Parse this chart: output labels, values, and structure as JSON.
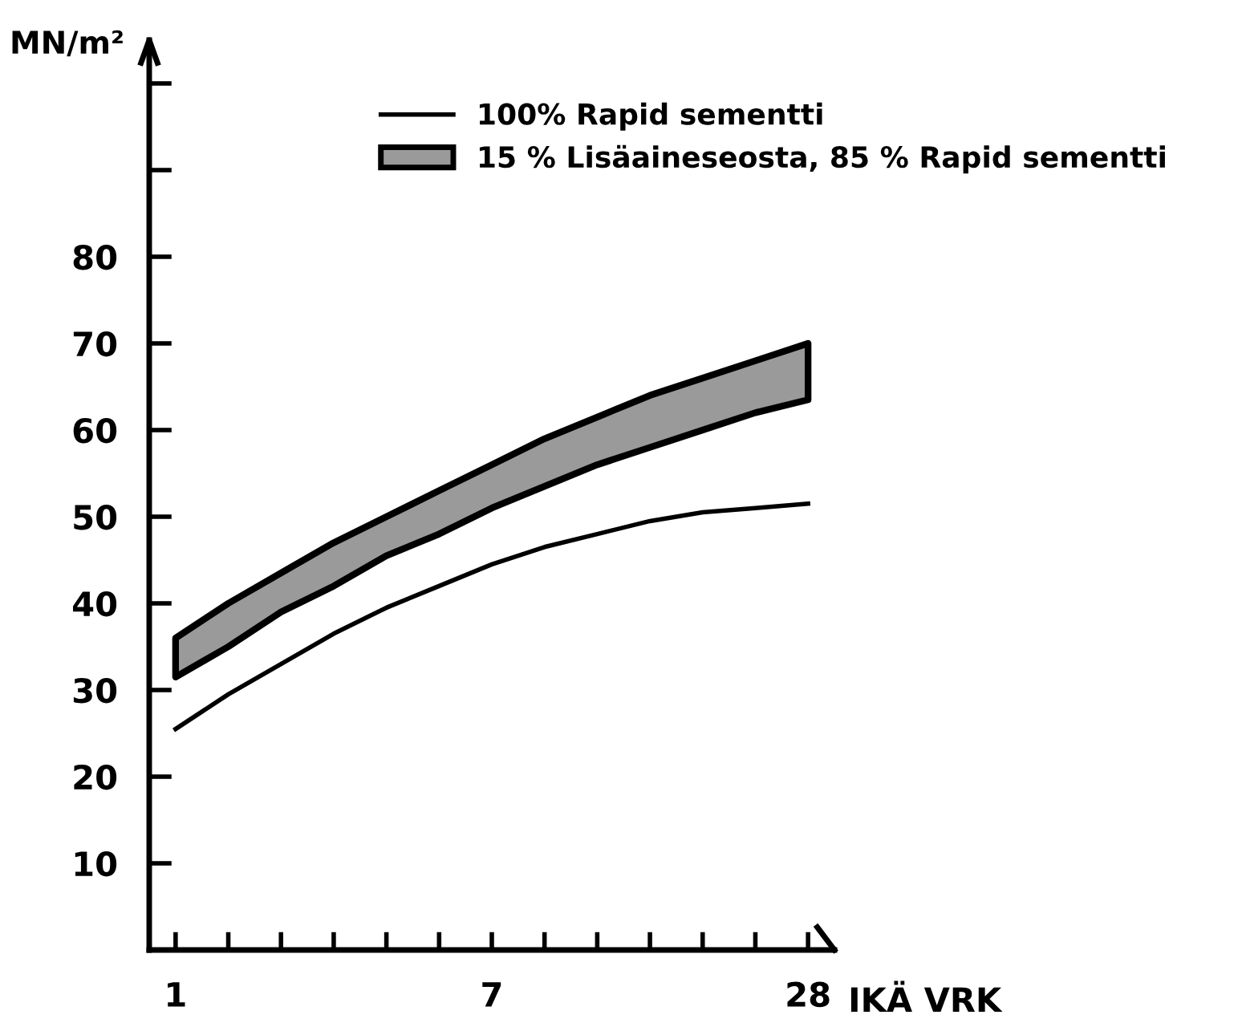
{
  "chart_data": {
    "type": "line",
    "ylabel": "MN/m²",
    "xlabel": "IKÄ VRK",
    "categories": [
      "1",
      null,
      null,
      null,
      null,
      null,
      "7",
      null,
      null,
      null,
      null,
      null,
      "28"
    ],
    "series": [
      {
        "name": "100% Rapid sementti",
        "color": "#000000",
        "values": [
          25.5,
          29.5,
          33,
          36.5,
          39.5,
          42,
          44.5,
          46.5,
          48,
          49.5,
          50.5,
          51,
          51.5
        ]
      },
      {
        "name": "15 % Lisäaineseosta, 85 % Rapid sementti",
        "color": "#9a9a9a",
        "values": [
          null,
          null,
          null,
          null,
          null,
          null,
          null,
          null,
          null,
          null,
          null,
          null,
          null
        ],
        "lower": [
          31.5,
          35,
          39,
          42,
          45.5,
          48,
          51,
          53.5,
          56,
          58,
          60,
          62,
          63.5
        ],
        "upper": [
          36,
          40,
          43.5,
          47,
          50,
          53,
          56,
          59,
          61.5,
          64,
          66,
          68,
          70
        ]
      }
    ],
    "ylim": [
      0,
      105
    ],
    "yticks": [
      10,
      20,
      30,
      40,
      50,
      60,
      70,
      80,
      {
        "value": 90,
        "label": null
      },
      {
        "value": 100,
        "label": null
      }
    ],
    "grid": false,
    "legend": "top"
  }
}
